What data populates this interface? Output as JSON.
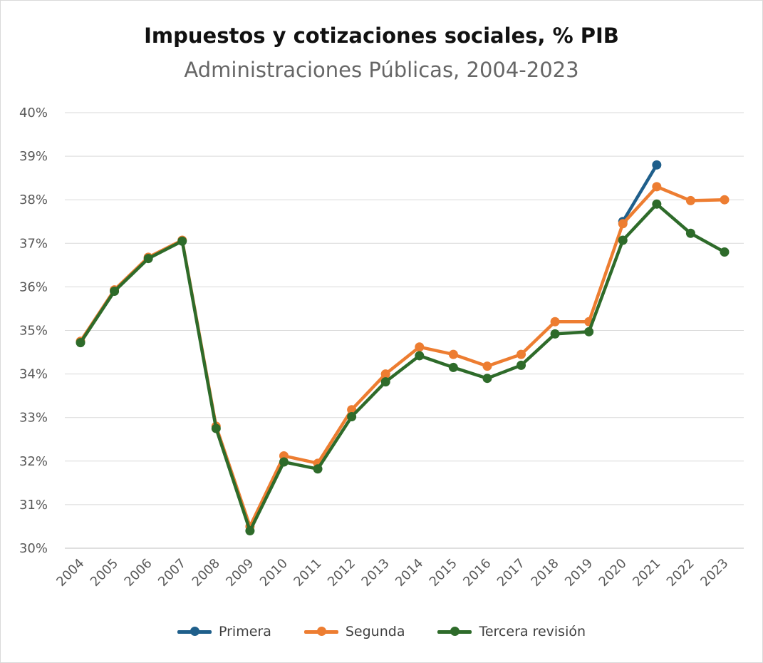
{
  "chart_data": {
    "type": "line",
    "title": "Impuestos y cotizaciones sociales, % PIB",
    "subtitle": "Administraciones Públicas, 2004-2023",
    "xlabel": "",
    "ylabel": "",
    "categories": [
      "2004",
      "2005",
      "2006",
      "2007",
      "2008",
      "2009",
      "2010",
      "2011",
      "2012",
      "2013",
      "2014",
      "2015",
      "2016",
      "2017",
      "2018",
      "2019",
      "2020",
      "2021",
      "2022",
      "2023"
    ],
    "yticks": [
      30,
      31,
      32,
      33,
      34,
      35,
      36,
      37,
      38,
      39,
      40
    ],
    "ytick_labels": [
      "30%",
      "31%",
      "32%",
      "33%",
      "34%",
      "35%",
      "36%",
      "37%",
      "38%",
      "39%",
      "40%"
    ],
    "ylim": [
      30,
      40
    ],
    "grid": true,
    "legend_position": "bottom",
    "series": [
      {
        "name": "Primera",
        "color": "#1f5f8b",
        "values": [
          null,
          null,
          null,
          null,
          null,
          null,
          null,
          null,
          null,
          null,
          null,
          null,
          null,
          null,
          null,
          null,
          37.5,
          38.8,
          null,
          null
        ]
      },
      {
        "name": "Segunda",
        "color": "#ed7d31",
        "values": [
          34.75,
          35.93,
          36.68,
          37.07,
          32.8,
          30.5,
          32.12,
          31.95,
          33.18,
          34.0,
          34.62,
          34.45,
          34.18,
          34.45,
          35.2,
          35.2,
          37.45,
          38.3,
          37.98,
          38.0
        ]
      },
      {
        "name": "Tercera revisión",
        "color": "#2e6b2a",
        "values": [
          34.72,
          35.9,
          36.65,
          37.05,
          32.75,
          30.4,
          31.98,
          31.82,
          33.02,
          33.82,
          34.42,
          34.15,
          33.9,
          34.2,
          34.92,
          34.97,
          37.07,
          37.9,
          37.23,
          36.8
        ]
      }
    ]
  }
}
